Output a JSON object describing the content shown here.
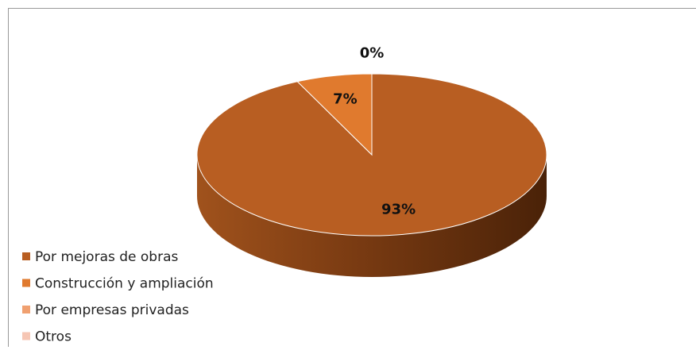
{
  "chart_data": {
    "type": "pie3d",
    "categories": [
      "Por mejoras de obras",
      "Construcción y ampliación",
      "Por empresas privadas",
      "Otros"
    ],
    "values": [
      93,
      7,
      0,
      0
    ],
    "value_labels": [
      "93%",
      "7%",
      "0%",
      null
    ],
    "colors": [
      "#b85e22",
      "#e07a2e",
      "#f0a070",
      "#f6c6b4"
    ],
    "legend": "bottom-left"
  }
}
